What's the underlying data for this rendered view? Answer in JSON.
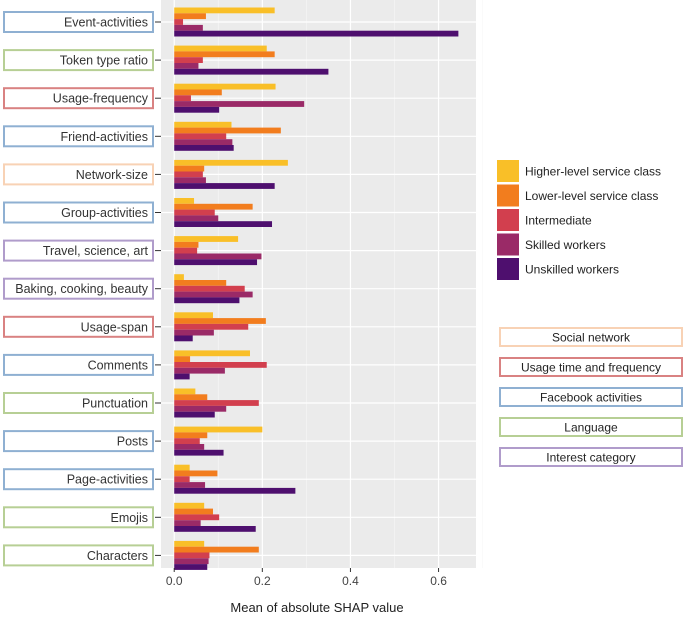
{
  "chart_data": {
    "type": "bar",
    "orientation": "horizontal",
    "title": "",
    "xlabel": "Mean of absolute SHAP value",
    "ylabel": "",
    "xlim": [
      -0.03,
      0.685
    ],
    "xticks": [
      0.0,
      0.2,
      0.4,
      0.6
    ],
    "xtick_labels": [
      "0.0",
      "0.2",
      "0.4",
      "0.6"
    ],
    "grid": true,
    "legend_position": "right",
    "categories": [
      "Event-activities",
      "Token type ratio",
      "Usage-frequency",
      "Friend-activities",
      "Network-size",
      "Group-activities",
      "Travel, science, art",
      "Baking, cooking, beauty",
      "Usage-span",
      "Comments",
      "Punctuation",
      "Posts",
      "Page-activities",
      "Emojis",
      "Characters"
    ],
    "category_groups": [
      "Facebook activities",
      "Language",
      "Usage time and frequency",
      "Facebook activities",
      "Social network",
      "Facebook activities",
      "Interest category",
      "Interest category",
      "Usage time and frequency",
      "Facebook activities",
      "Language",
      "Facebook activities",
      "Facebook activities",
      "Language",
      "Language"
    ],
    "series": [
      {
        "name": "Higher-level service class",
        "color": "#F9BF28",
        "values": [
          0.228,
          0.21,
          0.23,
          0.13,
          0.258,
          0.045,
          0.145,
          0.022,
          0.088,
          0.172,
          0.048,
          0.2,
          0.035,
          0.068,
          0.068
        ]
      },
      {
        "name": "Lower-level service class",
        "color": "#F27D1E",
        "values": [
          0.072,
          0.228,
          0.108,
          0.242,
          0.068,
          0.178,
          0.055,
          0.118,
          0.208,
          0.036,
          0.075,
          0.075,
          0.098,
          0.088,
          0.192
        ]
      },
      {
        "name": "Intermediate",
        "color": "#D23F4E",
        "values": [
          0.02,
          0.065,
          0.038,
          0.118,
          0.065,
          0.092,
          0.052,
          0.16,
          0.168,
          0.21,
          0.192,
          0.058,
          0.035,
          0.102,
          0.08
        ]
      },
      {
        "name": "Skilled workers",
        "color": "#9A2A67",
        "values": [
          0.065,
          0.055,
          0.295,
          0.132,
          0.072,
          0.1,
          0.198,
          0.178,
          0.09,
          0.115,
          0.118,
          0.068,
          0.07,
          0.06,
          0.078
        ]
      },
      {
        "name": "Unskilled workers",
        "color": "#4E0F6E",
        "values": [
          0.645,
          0.35,
          0.102,
          0.135,
          0.228,
          0.222,
          0.188,
          0.148,
          0.042,
          0.035,
          0.092,
          0.112,
          0.275,
          0.185,
          0.075
        ]
      }
    ]
  },
  "group_legend": {
    "items": [
      {
        "label": "Social network",
        "color": "#F8D2B5"
      },
      {
        "label": "Usage time and frequency",
        "color": "#D98282"
      },
      {
        "label": "Facebook activities",
        "color": "#8FB0D2"
      },
      {
        "label": "Language",
        "color": "#B7CF95"
      },
      {
        "label": "Interest category",
        "color": "#B09CCB"
      }
    ]
  },
  "colors": {
    "panel": "#EBEBEB",
    "grid": "#FFFFFF",
    "group_border": {
      "Social network": "#F8D2B5",
      "Usage time and frequency": "#D98282",
      "Facebook activities": "#8FB0D2",
      "Language": "#B7CF95",
      "Interest category": "#B09CCB"
    }
  }
}
